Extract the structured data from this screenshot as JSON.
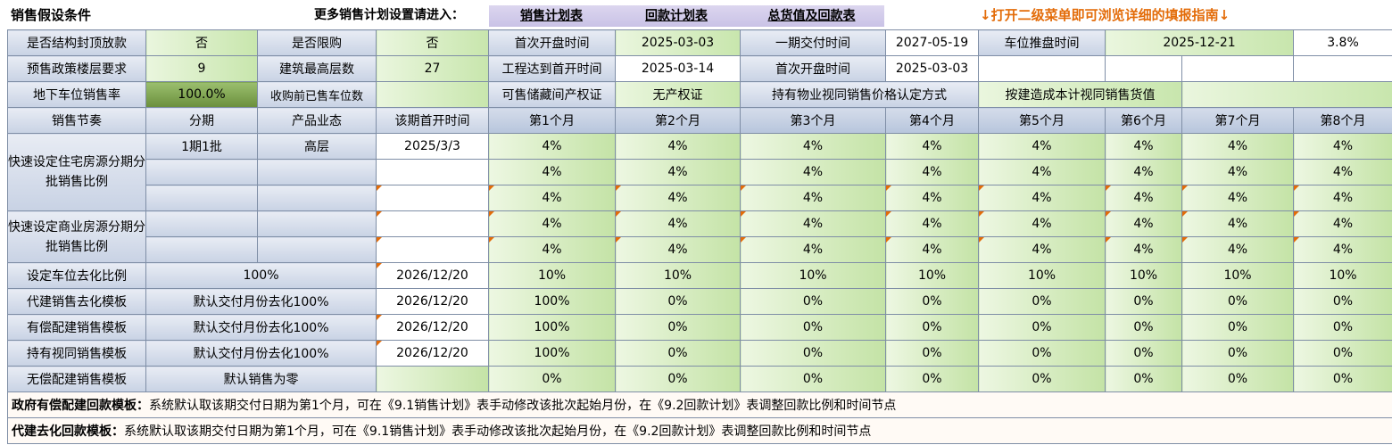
{
  "topbar": {
    "title": "销售假设条件",
    "prompt": "更多销售计划设置请进入：",
    "links": [
      "销售计划表",
      "回款计划表",
      "总货值及回款表"
    ],
    "guide": "↓打开二级菜单即可浏览详细的填报指南↓"
  },
  "row1": {
    "structure_label": "是否结构封顶放款",
    "structure_value": "否",
    "restrict_label": "是否限购",
    "restrict_value": "否",
    "open_label": "首次开盘时间",
    "open_value": "2025-03-03",
    "delivery_label": "一期交付时间",
    "delivery_value": "2027-05-19",
    "parking_label": "车位推盘时间",
    "parking_value": "2025-12-21",
    "parking_pct": "3.8%"
  },
  "row2": {
    "presale_label": "预售政策楼层要求",
    "presale_value": "9",
    "height_label": "建筑最高层数",
    "height_value": "27",
    "eng_label": "工程达到首开时间",
    "eng_value": "2025-03-14",
    "open2_label": "首次开盘时间",
    "open2_value": "2025-03-03"
  },
  "row3": {
    "parking_rate_label": "地下车位销售率",
    "parking_rate_value": "100.0%",
    "sold_label": "收购前已售车位数",
    "storage_label": "可售储藏间产权证",
    "storage_value": "无产权证",
    "hold_label": "持有物业视同销售价格认定方式",
    "cost_label": "按建造成本计视同销售货值"
  },
  "header": {
    "rhythm": "销售节奏",
    "phase": "分期",
    "product": "产品业态",
    "open_time": "该期首开时间",
    "months": [
      "第1个月",
      "第2个月",
      "第3个月",
      "第4个月",
      "第5个月",
      "第6个月",
      "第7个月",
      "第8个月"
    ]
  },
  "residential": {
    "label": "快速设定住宅房源分期分批销售比例",
    "phase": "1期1批",
    "product": "高层",
    "open_time": "2025/3/3",
    "rows": [
      [
        "4%",
        "4%",
        "4%",
        "4%",
        "4%",
        "4%",
        "4%",
        "4%"
      ],
      [
        "4%",
        "4%",
        "4%",
        "4%",
        "4%",
        "4%",
        "4%",
        "4%"
      ],
      [
        "4%",
        "4%",
        "4%",
        "4%",
        "4%",
        "4%",
        "4%",
        "4%"
      ]
    ]
  },
  "commercial": {
    "label": "快速设定商业房源分期分批销售比例",
    "rows": [
      [
        "4%",
        "4%",
        "4%",
        "4%",
        "4%",
        "4%",
        "4%",
        "4%"
      ],
      [
        "4%",
        "4%",
        "4%",
        "4%",
        "4%",
        "4%",
        "4%",
        "4%"
      ]
    ]
  },
  "templates": [
    {
      "label": "设定车位去化比例",
      "mode": "100%",
      "date": "2026/12/20",
      "values": [
        "10%",
        "10%",
        "10%",
        "10%",
        "10%",
        "10%",
        "10%",
        "10%"
      ]
    },
    {
      "label": "代建销售去化模板",
      "mode": "默认交付月份去化100%",
      "date": "2026/12/20",
      "values": [
        "100%",
        "0%",
        "0%",
        "0%",
        "0%",
        "0%",
        "0%",
        "0%"
      ]
    },
    {
      "label": "有偿配建销售模板",
      "mode": "默认交付月份去化100%",
      "date": "2026/12/20",
      "values": [
        "100%",
        "0%",
        "0%",
        "0%",
        "0%",
        "0%",
        "0%",
        "0%"
      ]
    },
    {
      "label": "持有视同销售模板",
      "mode": "默认交付月份去化100%",
      "date": "2026/12/20",
      "values": [
        "100%",
        "0%",
        "0%",
        "0%",
        "0%",
        "0%",
        "0%",
        "0%"
      ]
    },
    {
      "label": "无偿配建销售模板",
      "mode": "默认销售为零",
      "date": "",
      "values": [
        "0%",
        "0%",
        "0%",
        "0%",
        "0%",
        "0%",
        "0%",
        "0%"
      ]
    }
  ],
  "notes": [
    {
      "title": "政府有偿配建回款模板：",
      "text": "系统默认取该期交付日期为第1个月，可在《9.1销售计划》表手动修改该批次起始月份，在《9.2回款计划》表调整回款比例和时间节点"
    },
    {
      "title": "代建去化回款模板：",
      "text": "系统默认取该期交付日期为第1个月，可在《9.1销售计划》表手动修改该批次起始月份，在《9.2回款计划》表调整回款比例和时间节点"
    }
  ],
  "colors": {
    "guide": "#e36c09",
    "input_green": "#c8e6ad",
    "label_blue": "#c8d2e4",
    "link_purple": "#c9c2e6"
  }
}
